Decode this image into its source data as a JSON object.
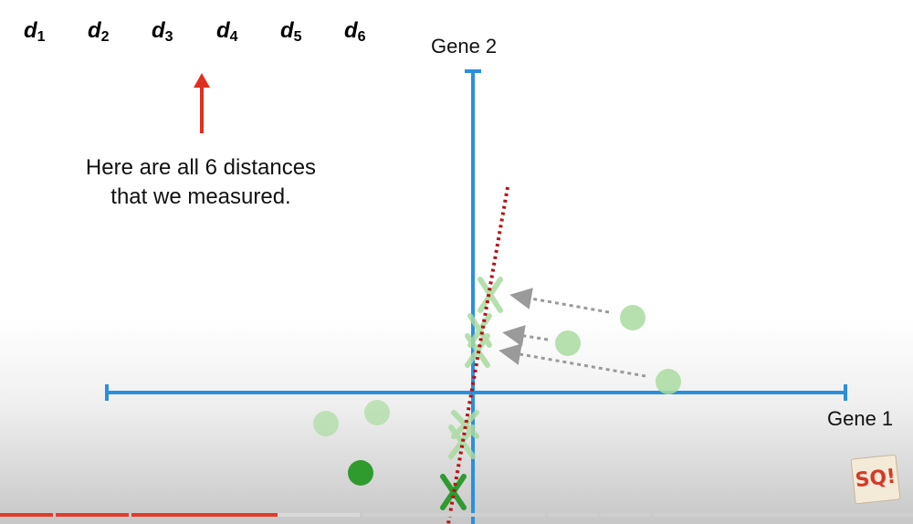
{
  "distances": [
    {
      "letter": "d",
      "sub": "1"
    },
    {
      "letter": "d",
      "sub": "2"
    },
    {
      "letter": "d",
      "sub": "3"
    },
    {
      "letter": "d",
      "sub": "4"
    },
    {
      "letter": "d",
      "sub": "5"
    },
    {
      "letter": "d",
      "sub": "6"
    }
  ],
  "caption": {
    "line1": "Here are all 6 distances",
    "line2": "that we measured."
  },
  "axes": {
    "y_label": "Gene 2",
    "x_label": "Gene 1"
  },
  "colors": {
    "axis": "#2b8fe0",
    "arrow": "#e0301e",
    "fit_line": "#b31616",
    "point_dark": "#2f9b2f",
    "point_light": "#a9dba0",
    "projection_arrow": "#9a9a9a",
    "progress_played": "#e53a2a",
    "progress_buffer": "#d9d9d9"
  },
  "logo": {
    "text": "SQ!"
  },
  "progress": {
    "played_fraction": 0.3
  }
}
